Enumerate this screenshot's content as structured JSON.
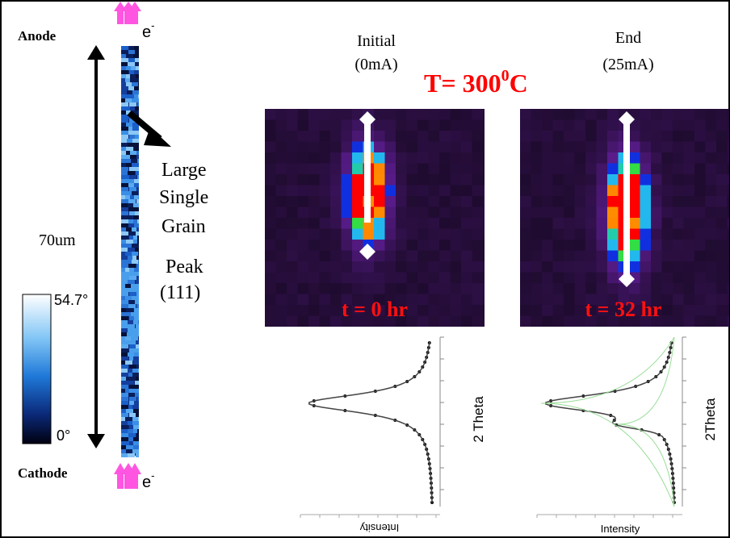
{
  "strip": {
    "anode": "Anode",
    "cathode": "Cathode",
    "top_electron": {
      "symbol": "e",
      "charge": "-"
    },
    "bottom_electron": {
      "symbol": "e",
      "charge": "-"
    },
    "length": "70um"
  },
  "colorbar": {
    "max_label": "54.7°",
    "min_label": "0°"
  },
  "annotation": {
    "lines": [
      "Large",
      "Single",
      "Grain"
    ],
    "peak": [
      "Peak",
      "(111)"
    ]
  },
  "conditions": {
    "initial": [
      "Initial",
      "(0mA)"
    ],
    "end": [
      "End",
      "(25mA)"
    ],
    "temperature": {
      "base": "T= 300",
      "sup": "0",
      "unit": "C"
    }
  },
  "panels": [
    {
      "time": "t = 0 hr",
      "plot": {
        "y_label": "2 Theta",
        "x_label": "Intensity"
      }
    },
    {
      "time": "t = 32 hr",
      "plot": {
        "y_label": "2Theta",
        "x_label": "Intensity"
      }
    }
  ]
}
